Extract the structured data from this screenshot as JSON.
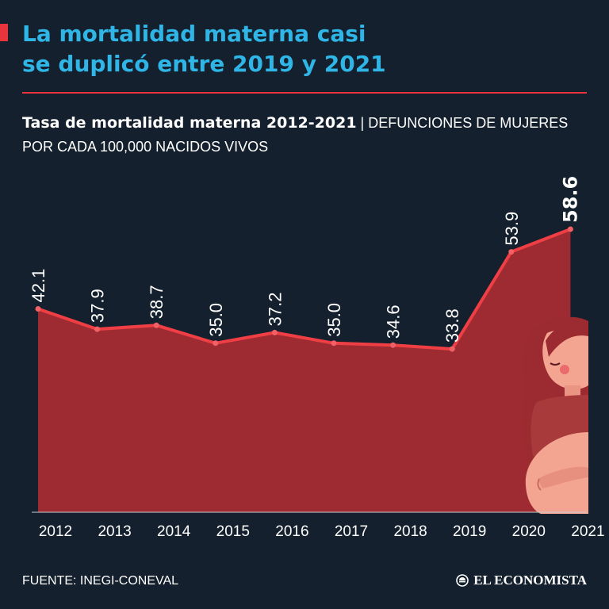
{
  "title": {
    "line1": "La mortalidad materna casi",
    "line2": "se duplicó entre 2019 y 2021"
  },
  "subtitle": {
    "bold": "Tasa de mortalidad materna 2012-2021",
    "separator": " | ",
    "light": "DEFUNCIONES DE MUJERES POR CADA 100,000 NACIDOS VIVOS"
  },
  "chart_data": {
    "type": "area",
    "title": "Tasa de mortalidad materna 2012-2021",
    "xlabel": "",
    "ylabel": "",
    "x": [
      "2012",
      "2013",
      "2014",
      "2015",
      "2016",
      "2017",
      "2018",
      "2019",
      "2020",
      "2021"
    ],
    "values": [
      42.1,
      37.9,
      38.7,
      35.0,
      37.2,
      35.0,
      34.6,
      33.8,
      53.9,
      58.6
    ],
    "data_labels": [
      "42.1",
      "37.9",
      "38.7",
      "35.0",
      "37.2",
      "35.0",
      "34.6",
      "33.8",
      "53.9",
      "58.6"
    ],
    "highlight_index": 9,
    "ylim": [
      0,
      58.6
    ],
    "grid": false,
    "colors": {
      "area": "#9e2a32",
      "line": "#ef3e44",
      "text": "#ffffff"
    }
  },
  "illustration": {
    "name": "pregnant woman"
  },
  "footer": {
    "source": "FUENTE: INEGI-CONEVAL",
    "brand": "EL ECONOMISTA"
  },
  "colors": {
    "background": "#14202d",
    "title": "#2fb6e6",
    "accent": "#e8343a"
  }
}
